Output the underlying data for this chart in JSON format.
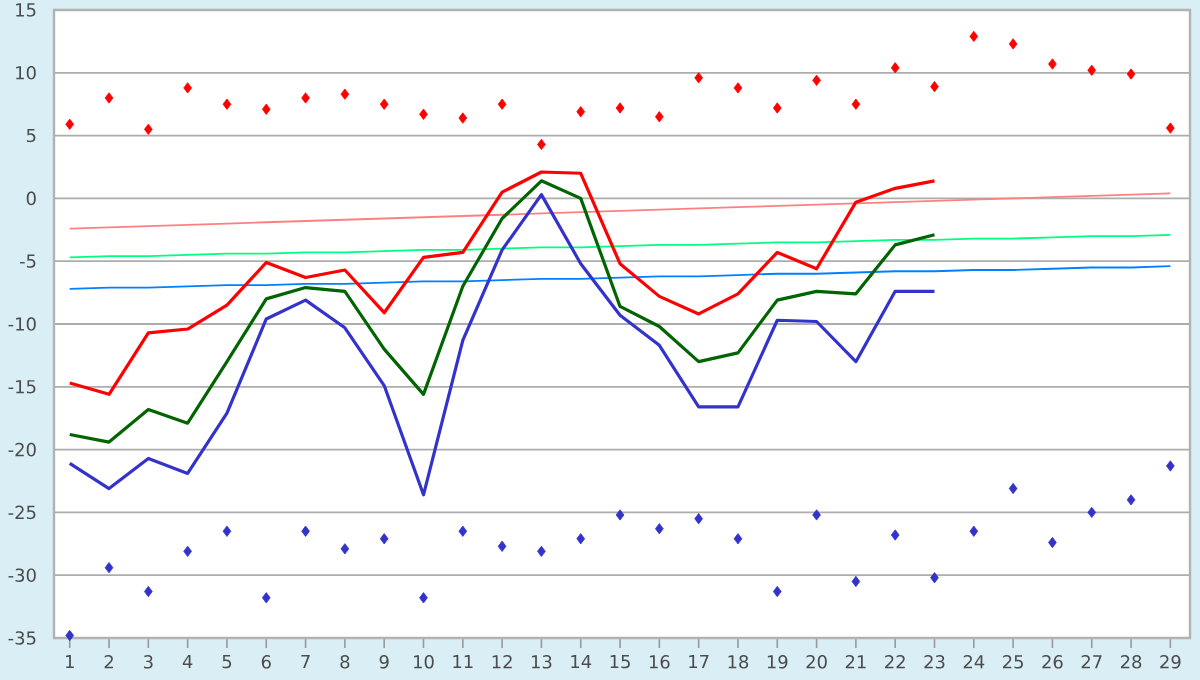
{
  "chart_data": {
    "type": "line",
    "x": [
      1,
      2,
      3,
      4,
      5,
      6,
      7,
      8,
      9,
      10,
      11,
      12,
      13,
      14,
      15,
      16,
      17,
      18,
      19,
      20,
      21,
      22,
      23,
      24,
      25,
      26,
      27,
      28,
      29
    ],
    "xlim": [
      0.6,
      29.5
    ],
    "xticks": [
      1,
      2,
      3,
      4,
      5,
      6,
      7,
      8,
      9,
      10,
      11,
      12,
      13,
      14,
      15,
      16,
      17,
      18,
      19,
      20,
      21,
      22,
      23,
      24,
      25,
      26,
      27,
      28,
      29
    ],
    "ylim": [
      -35,
      15
    ],
    "yticks": [
      -35,
      -30,
      -25,
      -20,
      -15,
      -10,
      -5,
      0,
      5,
      10,
      15
    ],
    "grid": "y",
    "series": [
      {
        "color": "#ff8080",
        "values": [
          -2.4,
          -2.3,
          -2.2,
          -2.1,
          -2.0,
          -1.9,
          -1.8,
          -1.7,
          -1.6,
          -1.5,
          -1.4,
          -1.3,
          -1.2,
          -1.1,
          -1.0,
          -0.9,
          -0.8,
          -0.7,
          -0.6,
          -0.5,
          -0.4,
          -0.3,
          -0.2,
          -0.1,
          0.0,
          0.1,
          0.2,
          0.3,
          0.4
        ]
      },
      {
        "color": "#00ff80",
        "values": [
          -4.7,
          -4.6,
          -4.6,
          -4.5,
          -4.4,
          -4.4,
          -4.3,
          -4.3,
          -4.2,
          -4.1,
          -4.1,
          -4.0,
          -3.9,
          -3.9,
          -3.8,
          -3.7,
          -3.7,
          -3.6,
          -3.5,
          -3.5,
          -3.4,
          -3.3,
          -3.3,
          -3.2,
          -3.2,
          -3.1,
          -3.0,
          -3.0,
          -2.9
        ]
      },
      {
        "color": "#0080ff",
        "values": [
          -7.2,
          -7.1,
          -7.1,
          -7.0,
          -6.9,
          -6.9,
          -6.8,
          -6.8,
          -6.7,
          -6.6,
          -6.6,
          -6.5,
          -6.4,
          -6.4,
          -6.3,
          -6.2,
          -6.2,
          -6.1,
          -6.0,
          -6.0,
          -5.9,
          -5.8,
          -5.8,
          -5.7,
          -5.7,
          -5.6,
          -5.5,
          -5.5,
          -5.4
        ]
      },
      {
        "color": "#ff0000",
        "values": [
          -14.7,
          -15.6,
          -10.7,
          -10.4,
          -8.5,
          -5.1,
          -6.3,
          -5.7,
          -9.1,
          -4.7,
          -4.3,
          0.5,
          2.1,
          2.0,
          -5.2,
          -7.8,
          -9.2,
          -7.6,
          -4.3,
          -5.6,
          -0.3,
          0.8,
          1.4,
          null,
          null,
          null,
          null,
          null,
          null
        ]
      },
      {
        "color": "#006400",
        "values": [
          -18.8,
          -19.4,
          -16.8,
          -17.9,
          -13.0,
          -8.0,
          -7.1,
          -7.4,
          -12.0,
          -15.6,
          -7.0,
          -1.6,
          1.4,
          0.0,
          -8.6,
          -10.2,
          -13.0,
          -12.3,
          -8.1,
          -7.4,
          -7.6,
          -3.7,
          -2.9,
          null,
          null,
          null,
          null,
          null,
          null
        ]
      },
      {
        "color": "#3333cc",
        "values": [
          -21.1,
          -23.1,
          -20.7,
          -21.9,
          -17.1,
          -9.6,
          -8.1,
          -10.3,
          -14.9,
          -23.6,
          -11.3,
          -4.1,
          0.3,
          -5.2,
          -9.3,
          -11.7,
          -16.6,
          -16.6,
          -9.7,
          -9.8,
          -13.0,
          -7.4,
          -7.4,
          null,
          null,
          null,
          null,
          null,
          null
        ]
      },
      {
        "type": "scatter",
        "marker": "diamond",
        "color": "#ff0000",
        "values": [
          5.9,
          8.0,
          5.5,
          8.8,
          7.5,
          7.1,
          8.0,
          8.3,
          7.5,
          6.7,
          6.4,
          7.5,
          4.3,
          6.9,
          7.2,
          6.5,
          9.6,
          8.8,
          7.2,
          9.4,
          7.5,
          10.4,
          8.9,
          12.9,
          12.3,
          10.7,
          10.2,
          9.9,
          5.6
        ]
      },
      {
        "type": "scatter",
        "marker": "diamond",
        "color": "#3333cc",
        "values": [
          -34.8,
          -29.4,
          -31.3,
          -28.1,
          -26.5,
          -31.8,
          -26.5,
          -27.9,
          -27.1,
          -31.8,
          -26.5,
          -27.7,
          -28.1,
          -27.1,
          -25.2,
          -26.3,
          -25.5,
          -27.1,
          -31.3,
          -25.2,
          -30.5,
          -26.8,
          -30.2,
          -26.5,
          -23.1,
          -27.4,
          -25.0,
          -24.0,
          -21.3
        ]
      }
    ]
  }
}
